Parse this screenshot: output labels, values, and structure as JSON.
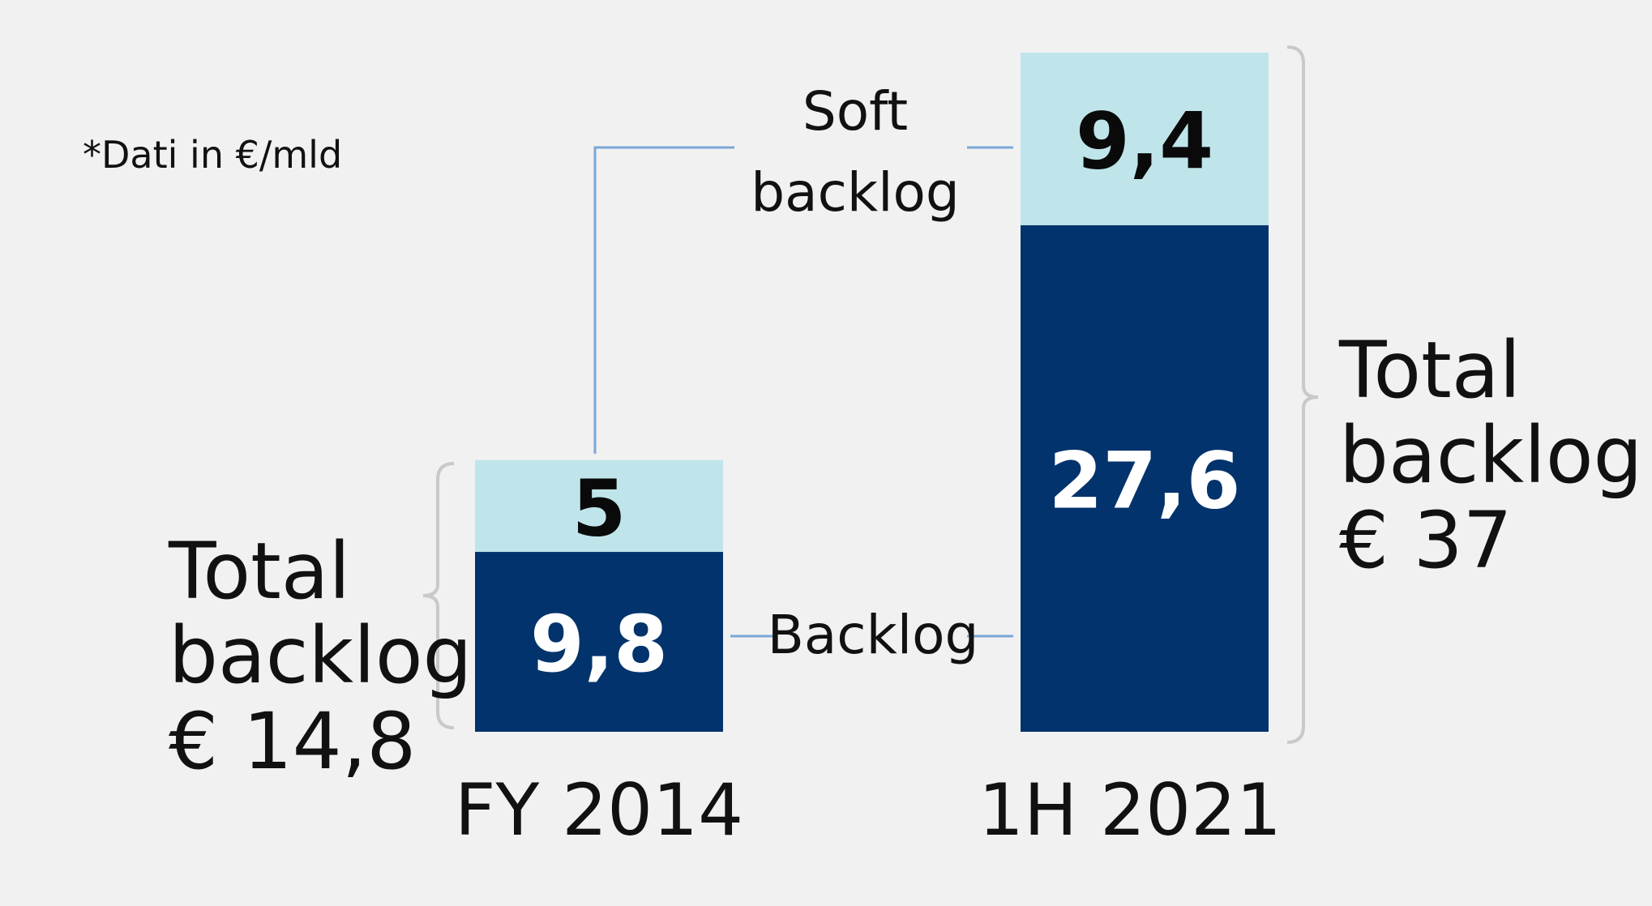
{
  "colors": {
    "backlog": "#03336c",
    "soft_backlog": "#bfe5ea",
    "connector": "#7aa6d8",
    "brace": "#c9c9c9",
    "background": "#f1f1f1"
  },
  "note": "*Dati in €/mld",
  "labels": {
    "soft_backlog_line1": "Soft",
    "soft_backlog_line2": "backlog",
    "backlog": "Backlog"
  },
  "totals": [
    {
      "line1": "Total",
      "line2": "backlog",
      "line3": "€ 14,8"
    },
    {
      "line1": "Total",
      "line2": "backlog",
      "line3": "€ 37"
    }
  ],
  "chart_data": {
    "type": "bar",
    "stacked": true,
    "categories": [
      "FY 2014",
      "1H 2021"
    ],
    "series": [
      {
        "name": "Backlog",
        "values": [
          9.8,
          27.6
        ],
        "labels": [
          "9,8",
          "27,6"
        ]
      },
      {
        "name": "Soft backlog",
        "values": [
          5,
          9.4
        ],
        "labels": [
          "5",
          "9,4"
        ]
      }
    ],
    "totals": [
      14.8,
      37
    ],
    "ylim": [
      0,
      37
    ],
    "grid": false
  }
}
